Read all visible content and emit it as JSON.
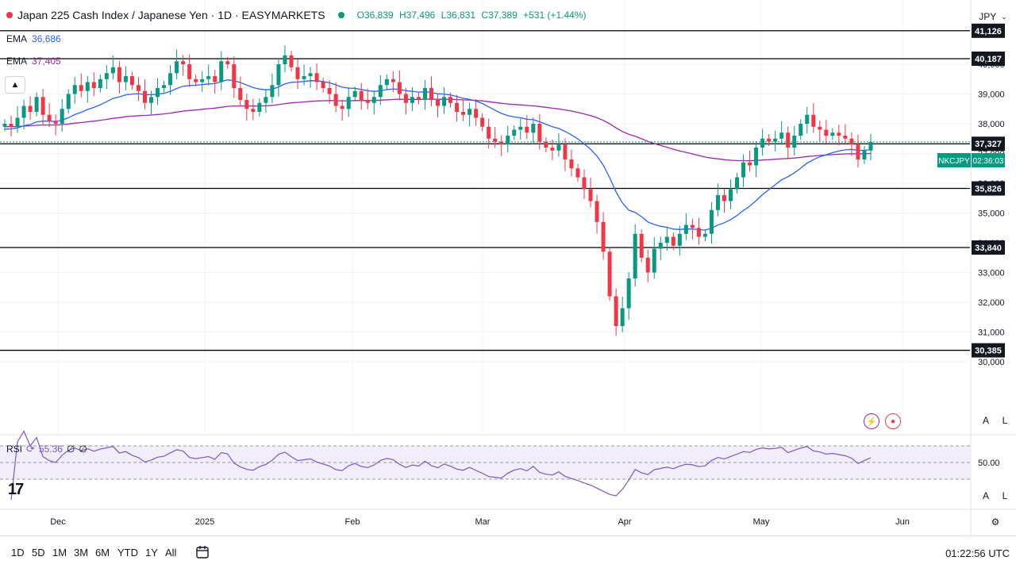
{
  "header": {
    "title": "Japan 225 Cash Index / Japanese Yen · 1D · EASYMARKETS",
    "ohlc": {
      "o": "O36,839",
      "h": "H37,496",
      "l": "L36,831",
      "c": "C37,389",
      "chg": "+531 (+1.44%)"
    },
    "ema1": {
      "label": "EMA",
      "value": "36,686",
      "color": "#2962ff"
    },
    "ema2": {
      "label": "EMA",
      "value": "37,405",
      "color": "#9c27b0"
    },
    "currency": "JPY"
  },
  "rsi": {
    "label": "RSI",
    "value": "55.36",
    "extra1": "∅",
    "extra2": "∅",
    "levels": [
      "50.00"
    ]
  },
  "colors": {
    "up": "#089981",
    "down": "#f23645",
    "ema_fast": "#2962ff",
    "ema_slow": "#9c27b0",
    "rsi": "#7e57c2"
  },
  "price_badge": {
    "symbol": "NKCJPY",
    "countdown": "02:36:03",
    "price": "37,327"
  },
  "bottom": {
    "timeframes": [
      "1D",
      "5D",
      "1M",
      "3M",
      "6M",
      "YTD",
      "1Y",
      "All"
    ],
    "clock": "01:22:56 UTC"
  },
  "chart_data": {
    "type": "candlestick",
    "title": "Japan 225 Cash Index / Japanese Yen · 1D · EASYMARKETS",
    "y_range": [
      29500,
      41500
    ],
    "y_ticks": [
      30000,
      31000,
      32000,
      33000,
      34000,
      35000,
      36000,
      37000,
      38000,
      39000,
      40000
    ],
    "x_labels": [
      "Dec",
      "2025",
      "Feb",
      "Mar",
      "Apr",
      "May",
      "Jun"
    ],
    "levels": [
      {
        "value": 41126,
        "label": "41,126"
      },
      {
        "value": 40187,
        "label": "40,187"
      },
      {
        "value": 37327,
        "label": "37,327"
      },
      {
        "value": 35826,
        "label": "35,826"
      },
      {
        "value": 33840,
        "label": "33,840"
      },
      {
        "value": 30385,
        "label": "30,385"
      }
    ],
    "closes": [
      38000,
      37900,
      38200,
      38600,
      38400,
      38900,
      38300,
      38100,
      38000,
      38500,
      39000,
      39300,
      39100,
      39400,
      39200,
      39500,
      39700,
      39900,
      39400,
      39600,
      39300,
      39100,
      38700,
      38900,
      39200,
      39300,
      39700,
      40100,
      40000,
      39500,
      39400,
      39500,
      39600,
      39400,
      40100,
      40000,
      39200,
      38800,
      38500,
      38400,
      38700,
      38900,
      39300,
      40000,
      40300,
      39900,
      39500,
      39600,
      39700,
      39400,
      39200,
      39000,
      38600,
      38500,
      38900,
      39100,
      38800,
      38700,
      38900,
      39300,
      39500,
      39400,
      39000,
      38700,
      38900,
      38800,
      39200,
      38800,
      38600,
      38900,
      38700,
      38400,
      38300,
      38500,
      38200,
      37900,
      37500,
      37400,
      37300,
      37600,
      37800,
      37900,
      37700,
      38000,
      37400,
      37200,
      37100,
      37300,
      36800,
      36500,
      36200,
      35800,
      35400,
      34700,
      33700,
      32200,
      31200,
      31800,
      32800,
      34300,
      33500,
      33000,
      33800,
      34000,
      34200,
      33900,
      34300,
      34600,
      34500,
      34200,
      34300,
      35100,
      35600,
      35400,
      35800,
      36200,
      36700,
      36600,
      37200,
      37500,
      37400,
      37500,
      37700,
      37200,
      37600,
      38000,
      38300,
      37900,
      37800,
      37600,
      37700,
      37600,
      37500,
      37300,
      36800,
      37100,
      37389
    ]
  }
}
